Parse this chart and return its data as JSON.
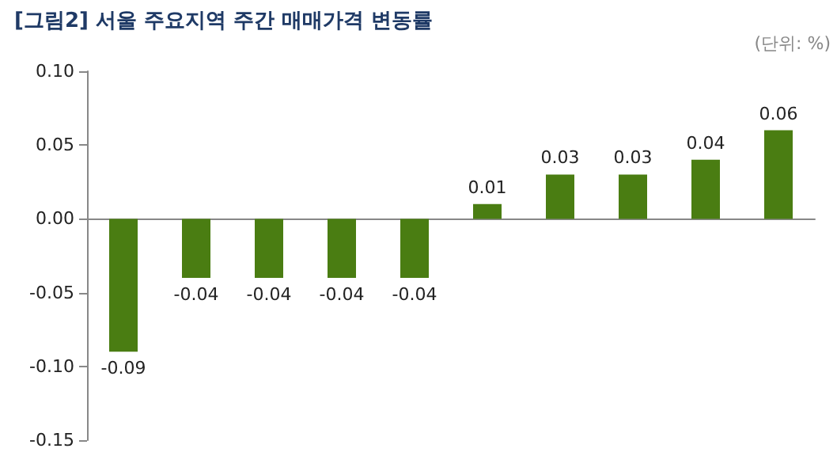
{
  "chart_data": {
    "type": "bar",
    "title": "[그림2] 서울 주요지역 주간 매매가격 변동률",
    "annotations": [
      "(단위: %)"
    ],
    "categories": [
      null,
      null,
      null,
      null,
      null,
      null,
      null,
      null,
      null,
      null
    ],
    "values": [
      -0.09,
      -0.04,
      -0.04,
      -0.04,
      -0.04,
      0.01,
      0.03,
      0.03,
      0.04,
      0.06
    ],
    "color": "#4a7d12",
    "ylim": [
      -0.15,
      0.1
    ],
    "yticks": [
      {
        "value": -0.15,
        "label": "-0.15"
      },
      {
        "value": -0.1,
        "label": "-0.10"
      },
      {
        "value": -0.05,
        "label": "-0.05"
      },
      {
        "value": 0,
        "label": "0.00"
      },
      {
        "value": 0.05,
        "label": "0.05"
      },
      {
        "value": 0.1,
        "label": "0.10"
      }
    ],
    "data_labels": true
  }
}
